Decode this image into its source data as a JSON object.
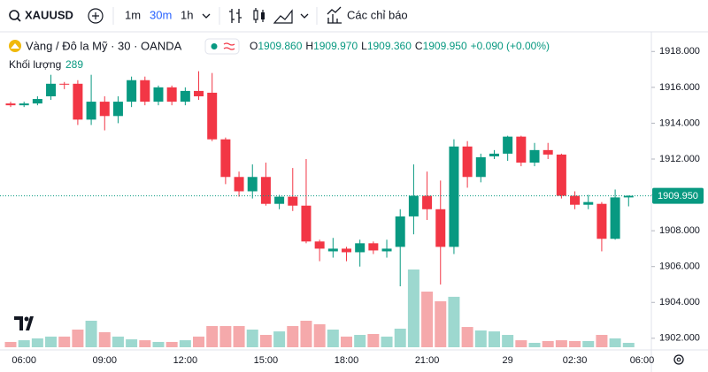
{
  "toolbar": {
    "symbol": "XAUUSD",
    "intervals": [
      "1m",
      "30m",
      "1h"
    ],
    "indicators": "Các chỉ báo"
  },
  "legend": {
    "title": "Vàng / Đô la Mỹ · 30 · OANDA",
    "open_label": "O",
    "open": "1909.860",
    "high_label": "H",
    "high": "1909.970",
    "low_label": "L",
    "low": "1909.360",
    "close_label": "C",
    "close": "1909.950",
    "change": "+0.090 (+0.00%)",
    "volume_label": "Khối lượng"
  },
  "chart_data": {
    "type": "candlestick",
    "categories": [
      null,
      "06:00",
      null,
      null,
      null,
      null,
      null,
      "09:00",
      null,
      null,
      null,
      null,
      null,
      "12:00",
      null,
      null,
      null,
      null,
      null,
      "15:00",
      null,
      null,
      null,
      null,
      null,
      "18:00",
      null,
      null,
      null,
      null,
      null,
      "21:00",
      null,
      null,
      null,
      null,
      null,
      "29",
      null,
      null,
      null,
      null,
      "02:30",
      null,
      null,
      null,
      null,
      "06:00"
    ],
    "open": [
      1915.1,
      1915.0,
      1915.1,
      1915.5,
      1916.2,
      1916.2,
      1914.2,
      1915.2,
      1914.4,
      1915.2,
      1916.4,
      1915.2,
      1916.0,
      1915.2,
      1915.8,
      1915.7,
      1913.1,
      1911.0,
      1910.2,
      1911.0,
      1909.5,
      1909.9,
      1909.4,
      1907.4,
      1906.85,
      1907.0,
      1906.8,
      1907.3,
      1906.85,
      1907.1,
      1908.8,
      1909.95,
      1909.2,
      1907.1,
      1912.7,
      1911.0,
      1912.15,
      1912.3,
      1913.25,
      1911.8,
      1912.5,
      1912.25,
      1909.95,
      1909.45,
      1909.5,
      1907.55,
      1909.86,
      null
    ],
    "high": [
      1915.2,
      1915.2,
      1915.5,
      1916.7,
      1916.3,
      1916.4,
      1916.7,
      1915.5,
      1915.5,
      1916.6,
      1916.6,
      1916.1,
      1916.1,
      1916.0,
      1916.9,
      1916.8,
      1913.2,
      1911.3,
      1911.7,
      1911.8,
      1910.0,
      1911.5,
      1912.0,
      1907.5,
      1907.6,
      1907.1,
      1907.5,
      1907.4,
      1907.5,
      1909.2,
      1911.7,
      1911.3,
      1910.8,
      1913.1,
      1913.0,
      1912.3,
      1912.5,
      1913.3,
      1913.3,
      1912.9,
      1912.9,
      1912.3,
      1910.2,
      1910.0,
      1909.6,
      1910.3,
      1909.97,
      null
    ],
    "low": [
      1914.9,
      1914.9,
      1915.0,
      1915.3,
      1915.9,
      1913.9,
      1913.9,
      1913.6,
      1914.0,
      1914.9,
      1915.0,
      1915.0,
      1915.0,
      1915.0,
      1915.3,
      1913.0,
      1910.6,
      1909.9,
      1909.8,
      1909.4,
      1909.2,
      1909.1,
      1907.3,
      1906.3,
      1906.5,
      1906.3,
      1906.0,
      1906.7,
      1906.5,
      1904.9,
      1907.8,
      1908.6,
      1905.0,
      1906.7,
      1910.4,
      1910.7,
      1912.0,
      1911.9,
      1911.6,
      1911.6,
      1912.0,
      1909.8,
      1909.2,
      1909.2,
      1906.85,
      1907.5,
      1909.36,
      null
    ],
    "close": [
      1915.0,
      1915.1,
      1915.35,
      1916.2,
      1916.15,
      1914.2,
      1915.2,
      1914.4,
      1915.2,
      1916.4,
      1915.2,
      1916.0,
      1915.2,
      1915.8,
      1915.5,
      1913.1,
      1911.0,
      1910.2,
      1911.0,
      1909.5,
      1909.9,
      1909.4,
      1907.4,
      1907.0,
      1907.0,
      1906.8,
      1907.3,
      1906.9,
      1907.0,
      1908.8,
      1909.95,
      1909.2,
      1907.1,
      1912.7,
      1911.0,
      1912.1,
      1912.3,
      1913.25,
      1911.8,
      1912.5,
      1912.25,
      1909.95,
      1909.45,
      1909.6,
      1907.55,
      1909.86,
      1909.95,
      null
    ],
    "volume": [
      350,
      460,
      580,
      700,
      700,
      1160,
      1740,
      990,
      700,
      520,
      460,
      350,
      350,
      460,
      700,
      1390,
      1390,
      1390,
      1160,
      810,
      1040,
      1390,
      1740,
      1510,
      1160,
      700,
      810,
      870,
      700,
      1220,
      5100,
      3650,
      3020,
      3310,
      1330,
      1100,
      1040,
      810,
      460,
      290,
      410,
      460,
      410,
      410,
      810,
      580,
      289,
      null
    ],
    "up_color": "#089981",
    "down_color": "#f23645",
    "volume_up_color": "#9dd8cf",
    "volume_down_color": "#f5a9ab",
    "ylim": [
      1901.4,
      1919.0
    ],
    "yticks": [
      {
        "value": 1902,
        "label": "1902.000"
      },
      {
        "value": 1904,
        "label": "1904.000"
      },
      {
        "value": 1906,
        "label": "1906.000"
      },
      {
        "value": 1908,
        "label": "1908.000"
      },
      {
        "value": 1910,
        "label": "1910.000"
      },
      {
        "value": 1912,
        "label": "1912.000"
      },
      {
        "value": 1914,
        "label": "1914.000"
      },
      {
        "value": 1916,
        "label": "1916.000"
      },
      {
        "value": 1918,
        "label": "1918.000"
      }
    ],
    "last_price": {
      "value": 1909.95,
      "label": "1909.950"
    },
    "grid": false
  }
}
